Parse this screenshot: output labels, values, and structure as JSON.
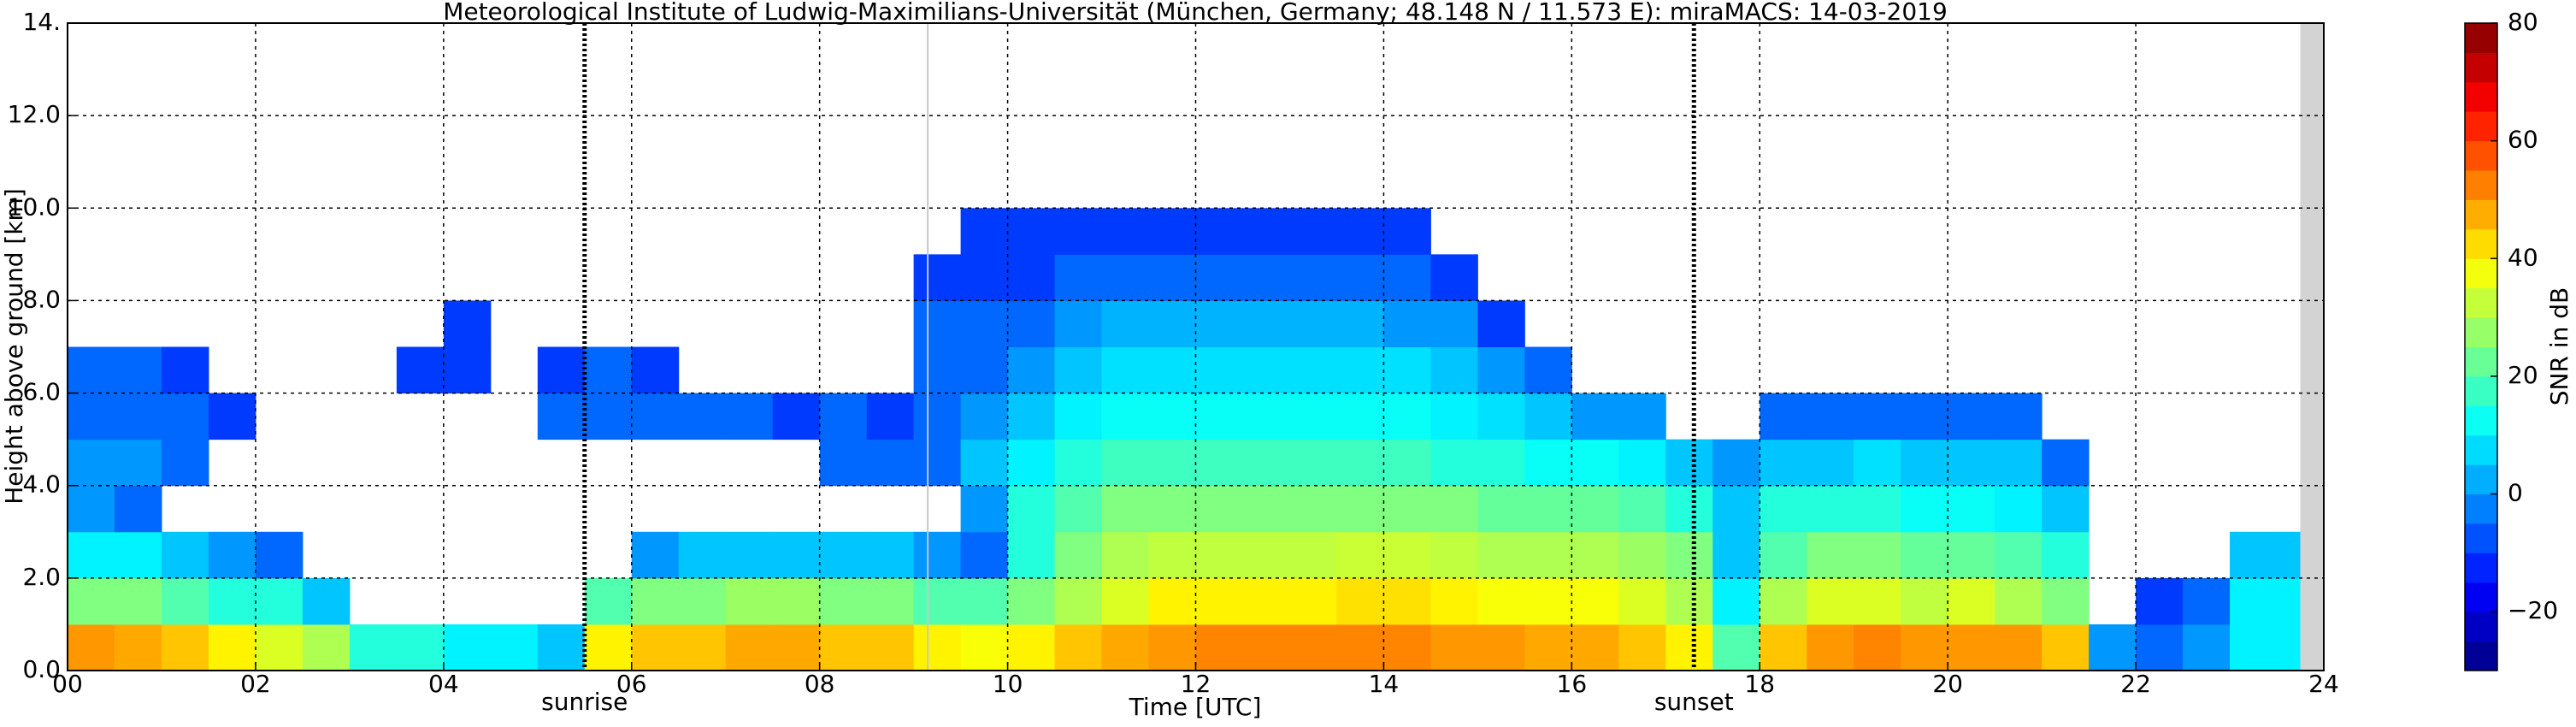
{
  "chart_data": {
    "type": "heatmap",
    "title": "Meteorological Institute of Ludwig-Maximilians-Universität (München, Germany; 48.148 N / 11.573 E):    miraMACS: 14-03-2019",
    "x_label": "Time [UTC]",
    "y_label": "Height above ground [km]",
    "colorbar_label": "SNR in dB",
    "xlim": [
      0,
      24
    ],
    "ylim": [
      0,
      14
    ],
    "clim": [
      -30,
      80
    ],
    "xticks": [
      {
        "value": 0,
        "label": "00"
      },
      {
        "value": 2,
        "label": "02"
      },
      {
        "value": 4,
        "label": "04"
      },
      {
        "value": 6,
        "label": "06"
      },
      {
        "value": 8,
        "label": "08"
      },
      {
        "value": 10,
        "label": "10"
      },
      {
        "value": 12,
        "label": "12"
      },
      {
        "value": 14,
        "label": "14"
      },
      {
        "value": 16,
        "label": "16"
      },
      {
        "value": 18,
        "label": "18"
      },
      {
        "value": 20,
        "label": "20"
      },
      {
        "value": 22,
        "label": "22"
      },
      {
        "value": 24,
        "label": "24"
      }
    ],
    "yticks": [
      {
        "value": 0,
        "label": "0.0"
      },
      {
        "value": 2,
        "label": "2.0"
      },
      {
        "value": 4,
        "label": "4.0"
      },
      {
        "value": 6,
        "label": "6.0"
      },
      {
        "value": 8,
        "label": "8.0"
      },
      {
        "value": 10,
        "label": "10.0"
      },
      {
        "value": 12,
        "label": "12.0"
      },
      {
        "value": 14,
        "label": "14."
      }
    ],
    "cticks": [
      -20,
      0,
      20,
      40,
      60,
      80
    ],
    "grid": true,
    "colormap": "jet",
    "annotations": [
      {
        "label": "sunrise",
        "x": 5.5
      },
      {
        "label": "sunset",
        "x": 17.3
      }
    ],
    "vlines": [
      9.15
    ],
    "nodata_x": [
      23.75,
      24
    ],
    "x_bins": [
      0,
      0.5,
      1,
      1.5,
      2,
      2.5,
      3,
      3.5,
      4,
      4.5,
      5,
      5.5,
      6,
      6.5,
      7,
      7.5,
      8,
      8.5,
      9,
      9.5,
      10,
      10.5,
      11,
      11.5,
      12,
      12.5,
      13,
      13.5,
      14,
      14.5,
      15,
      15.5,
      16,
      16.5,
      17,
      17.5,
      18,
      18.5,
      19,
      19.5,
      20,
      20.5,
      21,
      21.5,
      22,
      22.5,
      23,
      23.5,
      24
    ],
    "y_bins": [
      0,
      1,
      2,
      3,
      4,
      5,
      6,
      7,
      8,
      9,
      10
    ],
    "z": [
      [
        50,
        25,
        10,
        0,
        0,
        -5,
        -5,
        null,
        null,
        null
      ],
      [
        48,
        25,
        10,
        -5,
        0,
        -5,
        -5,
        null,
        null,
        null
      ],
      [
        45,
        20,
        5,
        null,
        -5,
        -5,
        -10,
        null,
        null,
        null
      ],
      [
        40,
        15,
        0,
        null,
        null,
        -10,
        null,
        null,
        null,
        null
      ],
      [
        35,
        15,
        -5,
        null,
        null,
        null,
        null,
        null,
        null,
        null
      ],
      [
        30,
        5,
        null,
        null,
        null,
        null,
        null,
        null,
        null,
        null
      ],
      [
        15,
        null,
        null,
        null,
        null,
        null,
        null,
        null,
        null,
        null
      ],
      [
        15,
        null,
        null,
        null,
        null,
        null,
        -10,
        null,
        null,
        null
      ],
      [
        10,
        null,
        null,
        null,
        null,
        null,
        -10,
        -10,
        null,
        null
      ],
      [
        10,
        null,
        null,
        null,
        null,
        null,
        null,
        null,
        null,
        null
      ],
      [
        5,
        null,
        null,
        null,
        null,
        -5,
        -10,
        null,
        null,
        null
      ],
      [
        40,
        20,
        null,
        null,
        null,
        -5,
        -5,
        null,
        null,
        null
      ],
      [
        45,
        25,
        0,
        null,
        null,
        -5,
        -10,
        null,
        null,
        null
      ],
      [
        45,
        25,
        5,
        null,
        null,
        -5,
        null,
        null,
        null,
        null
      ],
      [
        48,
        28,
        5,
        null,
        null,
        -5,
        null,
        null,
        null,
        null
      ],
      [
        48,
        28,
        5,
        null,
        null,
        -10,
        null,
        null,
        null,
        null
      ],
      [
        45,
        25,
        5,
        null,
        -5,
        -5,
        null,
        null,
        null,
        null
      ],
      [
        45,
        25,
        5,
        null,
        -5,
        -10,
        null,
        null,
        null,
        null
      ],
      [
        40,
        20,
        0,
        null,
        -5,
        -5,
        -5,
        -5,
        -10,
        null
      ],
      [
        38,
        20,
        -5,
        0,
        5,
        0,
        -5,
        -5,
        -10,
        -10
      ],
      [
        40,
        25,
        15,
        15,
        10,
        5,
        0,
        -5,
        -10,
        -10
      ],
      [
        45,
        30,
        25,
        20,
        15,
        10,
        5,
        0,
        -5,
        -10
      ],
      [
        48,
        35,
        30,
        25,
        18,
        12,
        8,
        3,
        -5,
        -10
      ],
      [
        50,
        40,
        32,
        25,
        18,
        12,
        8,
        3,
        -5,
        -10
      ],
      [
        52,
        40,
        32,
        25,
        18,
        12,
        8,
        3,
        -5,
        -10
      ],
      [
        52,
        40,
        32,
        25,
        18,
        12,
        8,
        3,
        -5,
        -10
      ],
      [
        52,
        40,
        32,
        25,
        18,
        12,
        8,
        3,
        -5,
        -10
      ],
      [
        52,
        42,
        33,
        25,
        18,
        12,
        8,
        3,
        -5,
        -10
      ],
      [
        52,
        42,
        33,
        25,
        18,
        12,
        8,
        0,
        -5,
        -10
      ],
      [
        50,
        40,
        32,
        25,
        15,
        10,
        5,
        0,
        -10,
        null
      ],
      [
        50,
        38,
        30,
        22,
        15,
        8,
        0,
        -10,
        null,
        null
      ],
      [
        48,
        38,
        30,
        22,
        12,
        5,
        -5,
        null,
        null,
        null
      ],
      [
        48,
        38,
        30,
        22,
        12,
        0,
        null,
        null,
        null,
        null
      ],
      [
        45,
        35,
        28,
        20,
        10,
        0,
        null,
        null,
        null,
        null
      ],
      [
        40,
        30,
        25,
        15,
        5,
        null,
        null,
        null,
        null,
        null
      ],
      [
        20,
        10,
        5,
        5,
        0,
        null,
        null,
        null,
        null,
        null
      ],
      [
        45,
        30,
        20,
        15,
        5,
        -5,
        null,
        null,
        null,
        null
      ],
      [
        50,
        35,
        25,
        15,
        5,
        -5,
        null,
        null,
        null,
        null
      ],
      [
        52,
        35,
        25,
        15,
        8,
        -5,
        null,
        null,
        null,
        null
      ],
      [
        50,
        32,
        22,
        12,
        5,
        -5,
        null,
        null,
        null,
        null
      ],
      [
        50,
        35,
        22,
        12,
        5,
        -5,
        null,
        null,
        null,
        null
      ],
      [
        50,
        30,
        20,
        10,
        5,
        -5,
        null,
        null,
        null,
        null
      ],
      [
        45,
        25,
        15,
        5,
        -5,
        null,
        null,
        null,
        null,
        null
      ],
      [
        0,
        null,
        null,
        null,
        null,
        null,
        null,
        null,
        null,
        null
      ],
      [
        -5,
        -10,
        null,
        null,
        null,
        null,
        null,
        null,
        null,
        null
      ],
      [
        0,
        -5,
        null,
        null,
        null,
        null,
        null,
        null,
        null,
        null
      ],
      [
        10,
        10,
        5,
        null,
        null,
        null,
        null,
        null,
        null,
        null
      ],
      [
        10,
        10,
        5,
        null,
        null,
        null,
        null,
        null,
        null,
        null
      ]
    ]
  }
}
